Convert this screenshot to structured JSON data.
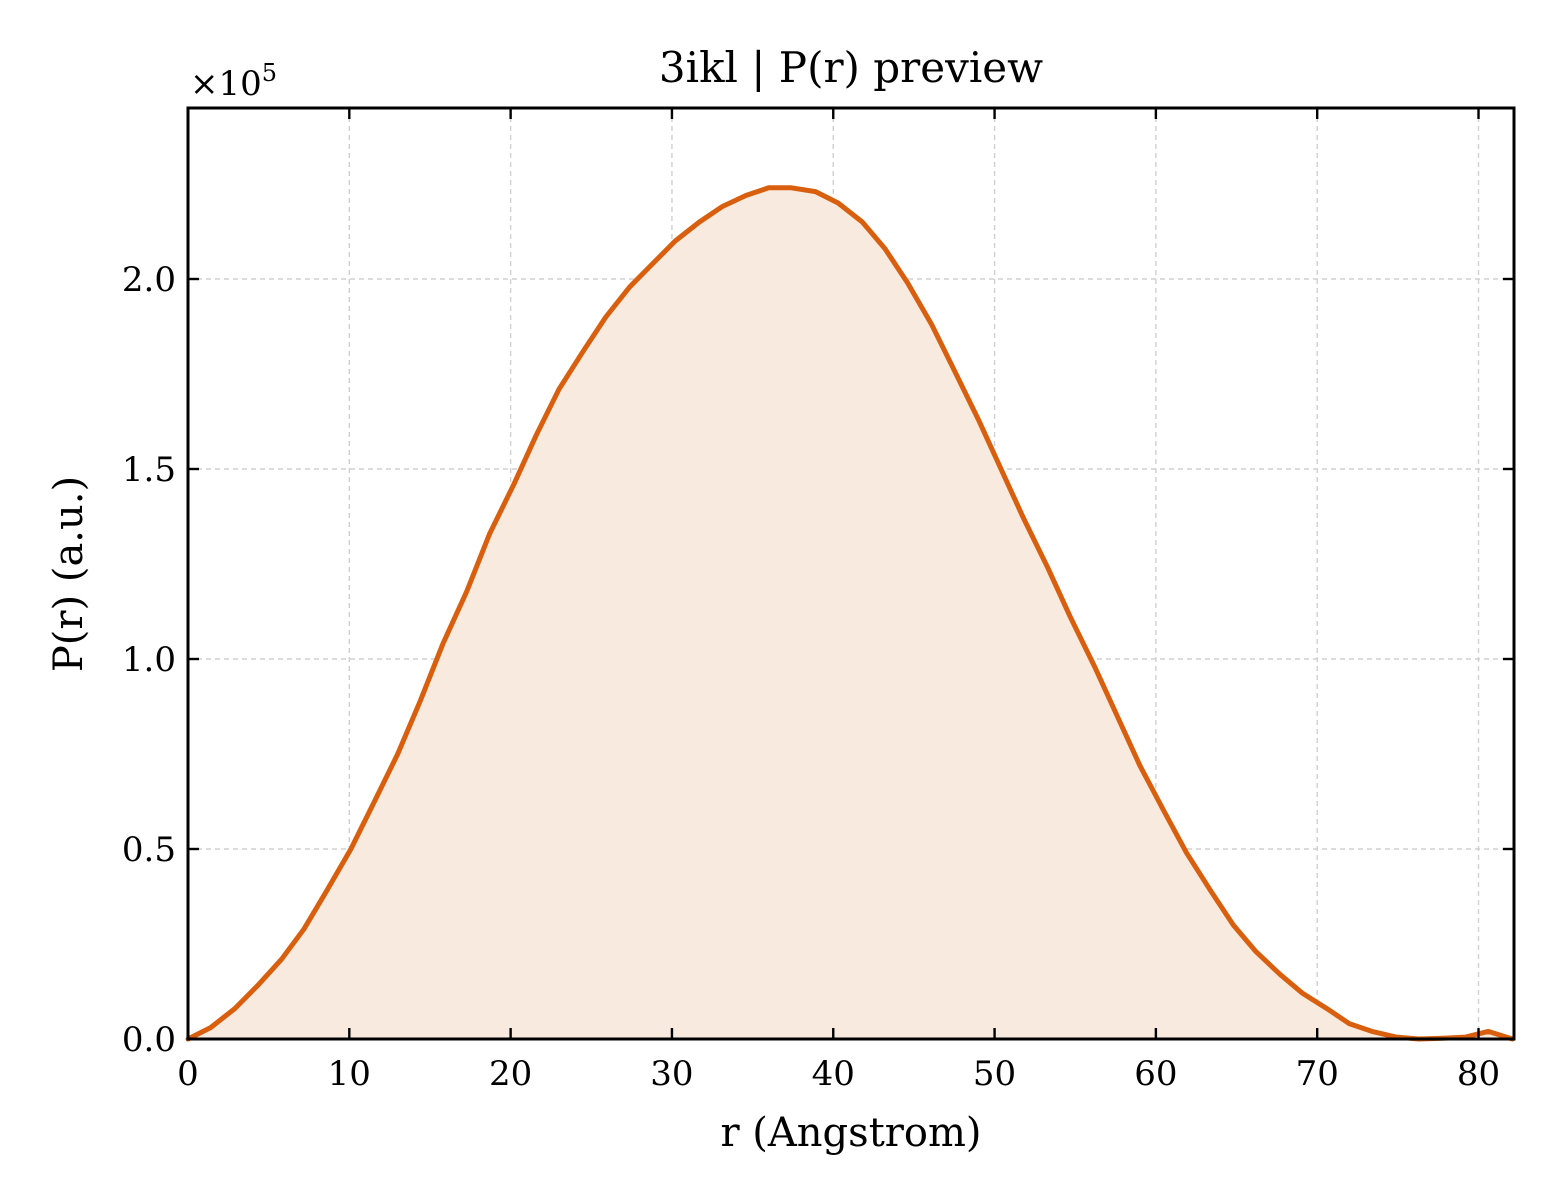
{
  "chart_data": {
    "type": "area",
    "title": "3ikl | P(r) preview",
    "xlabel": "r (Angstrom)",
    "ylabel": "P(r) (a.u.)",
    "y_offset_label": {
      "base": "×10",
      "exponent": "5"
    },
    "xlim": [
      0,
      82.2
    ],
    "ylim": [
      0,
      2.45
    ],
    "y_scale_factor": 100000,
    "grid": true,
    "x_ticks": [
      0,
      10,
      20,
      30,
      40,
      50,
      60,
      70,
      80
    ],
    "x_tick_labels": [
      "0",
      "10",
      "20",
      "30",
      "40",
      "50",
      "60",
      "70",
      "80"
    ],
    "y_ticks": [
      0,
      0.5,
      1.0,
      1.5,
      2.0
    ],
    "y_tick_labels": [
      "0.0",
      "0.5",
      "1.0",
      "1.5",
      "2.0"
    ],
    "line_color": "#d95f0e",
    "fill_color": "#f8eadf",
    "series": [
      {
        "x": [
          0,
          1.4,
          2.9,
          4.3,
          5.8,
          7.2,
          8.6,
          10.1,
          11.5,
          13.0,
          14.4,
          15.8,
          17.3,
          18.7,
          20.2,
          21.6,
          23.0,
          24.5,
          25.9,
          27.4,
          28.8,
          30.2,
          31.7,
          33.1,
          34.6,
          36.0,
          37.4,
          38.9,
          40.3,
          41.8,
          43.2,
          44.6,
          46.1,
          47.5,
          49.0,
          50.4,
          51.8,
          53.3,
          54.7,
          56.2,
          57.6,
          59.0,
          60.5,
          61.9,
          63.4,
          64.8,
          66.2,
          67.7,
          69.1,
          70.6,
          72.0,
          73.4,
          74.9,
          76.3,
          77.8,
          79.2,
          80.6,
          82.1
        ],
        "y": [
          0.0,
          0.03,
          0.08,
          0.14,
          0.21,
          0.29,
          0.39,
          0.5,
          0.62,
          0.75,
          0.89,
          1.04,
          1.18,
          1.33,
          1.46,
          1.59,
          1.71,
          1.81,
          1.9,
          1.98,
          2.04,
          2.1,
          2.15,
          2.19,
          2.22,
          2.24,
          2.24,
          2.23,
          2.2,
          2.15,
          2.08,
          1.99,
          1.88,
          1.76,
          1.63,
          1.5,
          1.37,
          1.24,
          1.11,
          0.98,
          0.85,
          0.72,
          0.6,
          0.49,
          0.39,
          0.3,
          0.23,
          0.17,
          0.12,
          0.08,
          0.04,
          0.02,
          0.005,
          0.0,
          0.002,
          0.005,
          0.02,
          0.0
        ]
      }
    ]
  }
}
